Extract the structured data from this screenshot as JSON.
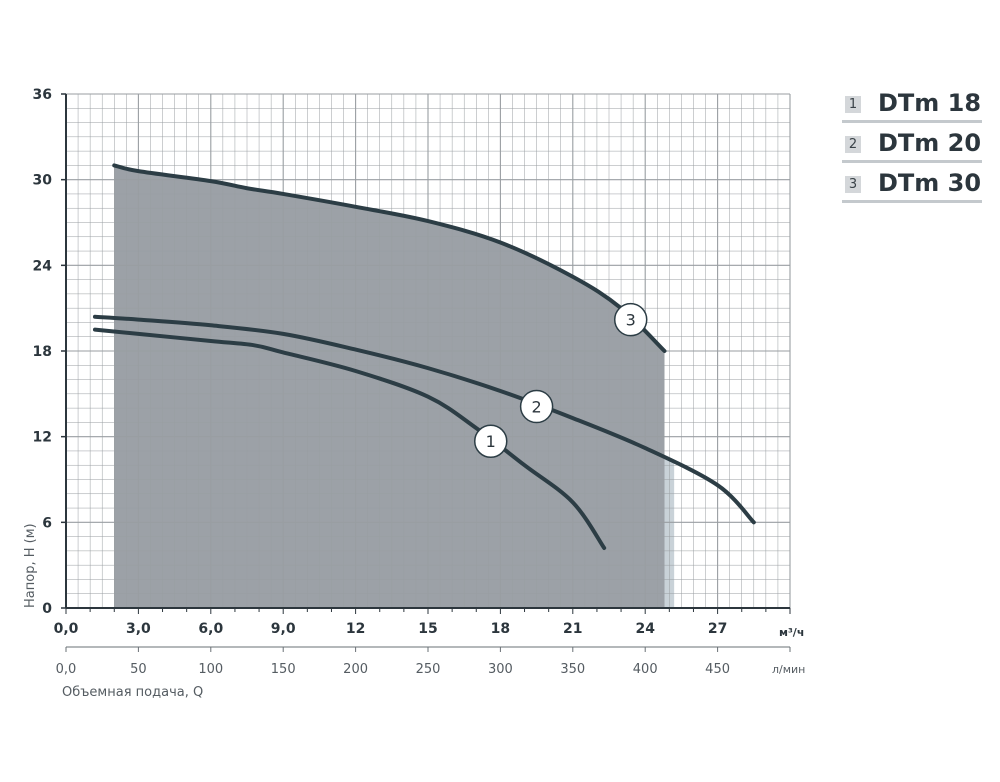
{
  "chart_data": {
    "type": "line",
    "xlabel": "Объемная подача, Q",
    "ylabel": "Напор, H (м)",
    "x_unit_primary": "м³/ч",
    "x_unit_secondary": "л/мин",
    "xlim": [
      0,
      30
    ],
    "ylim": [
      0,
      36
    ],
    "x_ticks_primary": [
      "0,0",
      "3,0",
      "6,0",
      "9,0",
      "12",
      "15",
      "18",
      "21",
      "24",
      "27"
    ],
    "x_ticks_secondary": [
      "0,0",
      "50",
      "100",
      "150",
      "200",
      "250",
      "300",
      "350",
      "400",
      "450"
    ],
    "y_ticks": [
      "0",
      "6",
      "12",
      "18",
      "24",
      "30",
      "36"
    ],
    "grid": true,
    "legend_position": "top-right",
    "series": [
      {
        "name": "DTm 18",
        "label": "1",
        "range_q": [
          1.2,
          22.3
        ],
        "points": [
          [
            1.2,
            19.5
          ],
          [
            3,
            19.2
          ],
          [
            6,
            18.7
          ],
          [
            7.8,
            18.4
          ],
          [
            9,
            17.9
          ],
          [
            12,
            16.6
          ],
          [
            15,
            14.8
          ],
          [
            17,
            12.6
          ],
          [
            19,
            10.0
          ],
          [
            21,
            7.4
          ],
          [
            22.3,
            4.2
          ]
        ]
      },
      {
        "name": "DTm 20",
        "label": "2",
        "range_q": [
          1.2,
          28.5
        ],
        "points": [
          [
            1.2,
            20.4
          ],
          [
            3,
            20.2
          ],
          [
            6,
            19.8
          ],
          [
            9,
            19.2
          ],
          [
            12,
            18.1
          ],
          [
            15,
            16.8
          ],
          [
            18,
            15.2
          ],
          [
            21,
            13.3
          ],
          [
            24,
            11.2
          ],
          [
            27,
            8.6
          ],
          [
            28.5,
            6.0
          ]
        ]
      },
      {
        "name": "DTm 30",
        "label": "3",
        "range_q": [
          2,
          24.8
        ],
        "points": [
          [
            2,
            31.0
          ],
          [
            3,
            30.6
          ],
          [
            6,
            29.9
          ],
          [
            7.5,
            29.4
          ],
          [
            9,
            29.0
          ],
          [
            12,
            28.1
          ],
          [
            15,
            27.1
          ],
          [
            18,
            25.6
          ],
          [
            21,
            23.2
          ],
          [
            23,
            21.0
          ],
          [
            24.8,
            18.0
          ]
        ]
      }
    ],
    "shaded_regions": [
      {
        "series": "DTm 18",
        "q_range": [
          2,
          22.3
        ]
      },
      {
        "series": "DTm 20",
        "q_range": [
          2,
          25.2
        ]
      },
      {
        "series": "DTm 30",
        "q_range": [
          2,
          24.8
        ]
      }
    ],
    "colors": {
      "curve": "#2c3d45",
      "region_1": "#d6d9db",
      "region_2": "#c9d2d8",
      "region_3": "#9ca1a7",
      "grid": "#999ea2",
      "axis": "#2c363d"
    }
  }
}
